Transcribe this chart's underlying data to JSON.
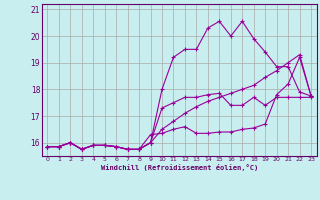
{
  "xlabel": "Windchill (Refroidissement éolien,°C)",
  "ylabel": "",
  "bg_color": "#c8eef0",
  "line_color": "#990099",
  "grid_color": "#aaaaaa",
  "axis_color": "#660066",
  "ylim": [
    15.5,
    21.2
  ],
  "xlim": [
    -0.5,
    23.5
  ],
  "yticks": [
    16,
    17,
    18,
    19,
    20,
    21
  ],
  "xticks": [
    0,
    1,
    2,
    3,
    4,
    5,
    6,
    7,
    8,
    9,
    10,
    11,
    12,
    13,
    14,
    15,
    16,
    17,
    18,
    19,
    20,
    21,
    22,
    23
  ],
  "series": [
    [
      15.85,
      15.85,
      16.0,
      15.75,
      15.9,
      15.9,
      15.85,
      15.75,
      15.75,
      16.0,
      17.3,
      17.5,
      17.7,
      17.7,
      17.8,
      17.85,
      17.4,
      17.4,
      17.7,
      17.4,
      17.7,
      17.7,
      17.7,
      17.7
    ],
    [
      15.85,
      15.85,
      16.0,
      15.75,
      15.9,
      15.9,
      15.85,
      15.75,
      15.75,
      16.0,
      18.0,
      19.2,
      19.5,
      19.5,
      20.3,
      20.55,
      20.0,
      20.55,
      19.9,
      19.4,
      18.85,
      18.85,
      17.9,
      17.75
    ],
    [
      15.85,
      15.85,
      16.0,
      15.75,
      15.9,
      15.9,
      15.85,
      15.75,
      15.75,
      16.3,
      16.35,
      16.5,
      16.6,
      16.35,
      16.35,
      16.4,
      16.4,
      16.5,
      16.55,
      16.7,
      17.8,
      18.2,
      19.2,
      17.75
    ],
    [
      15.85,
      15.85,
      16.0,
      15.75,
      15.9,
      15.9,
      15.85,
      15.75,
      15.75,
      16.0,
      16.5,
      16.8,
      17.1,
      17.35,
      17.55,
      17.7,
      17.85,
      18.0,
      18.15,
      18.45,
      18.7,
      19.0,
      19.3,
      17.75
    ]
  ]
}
